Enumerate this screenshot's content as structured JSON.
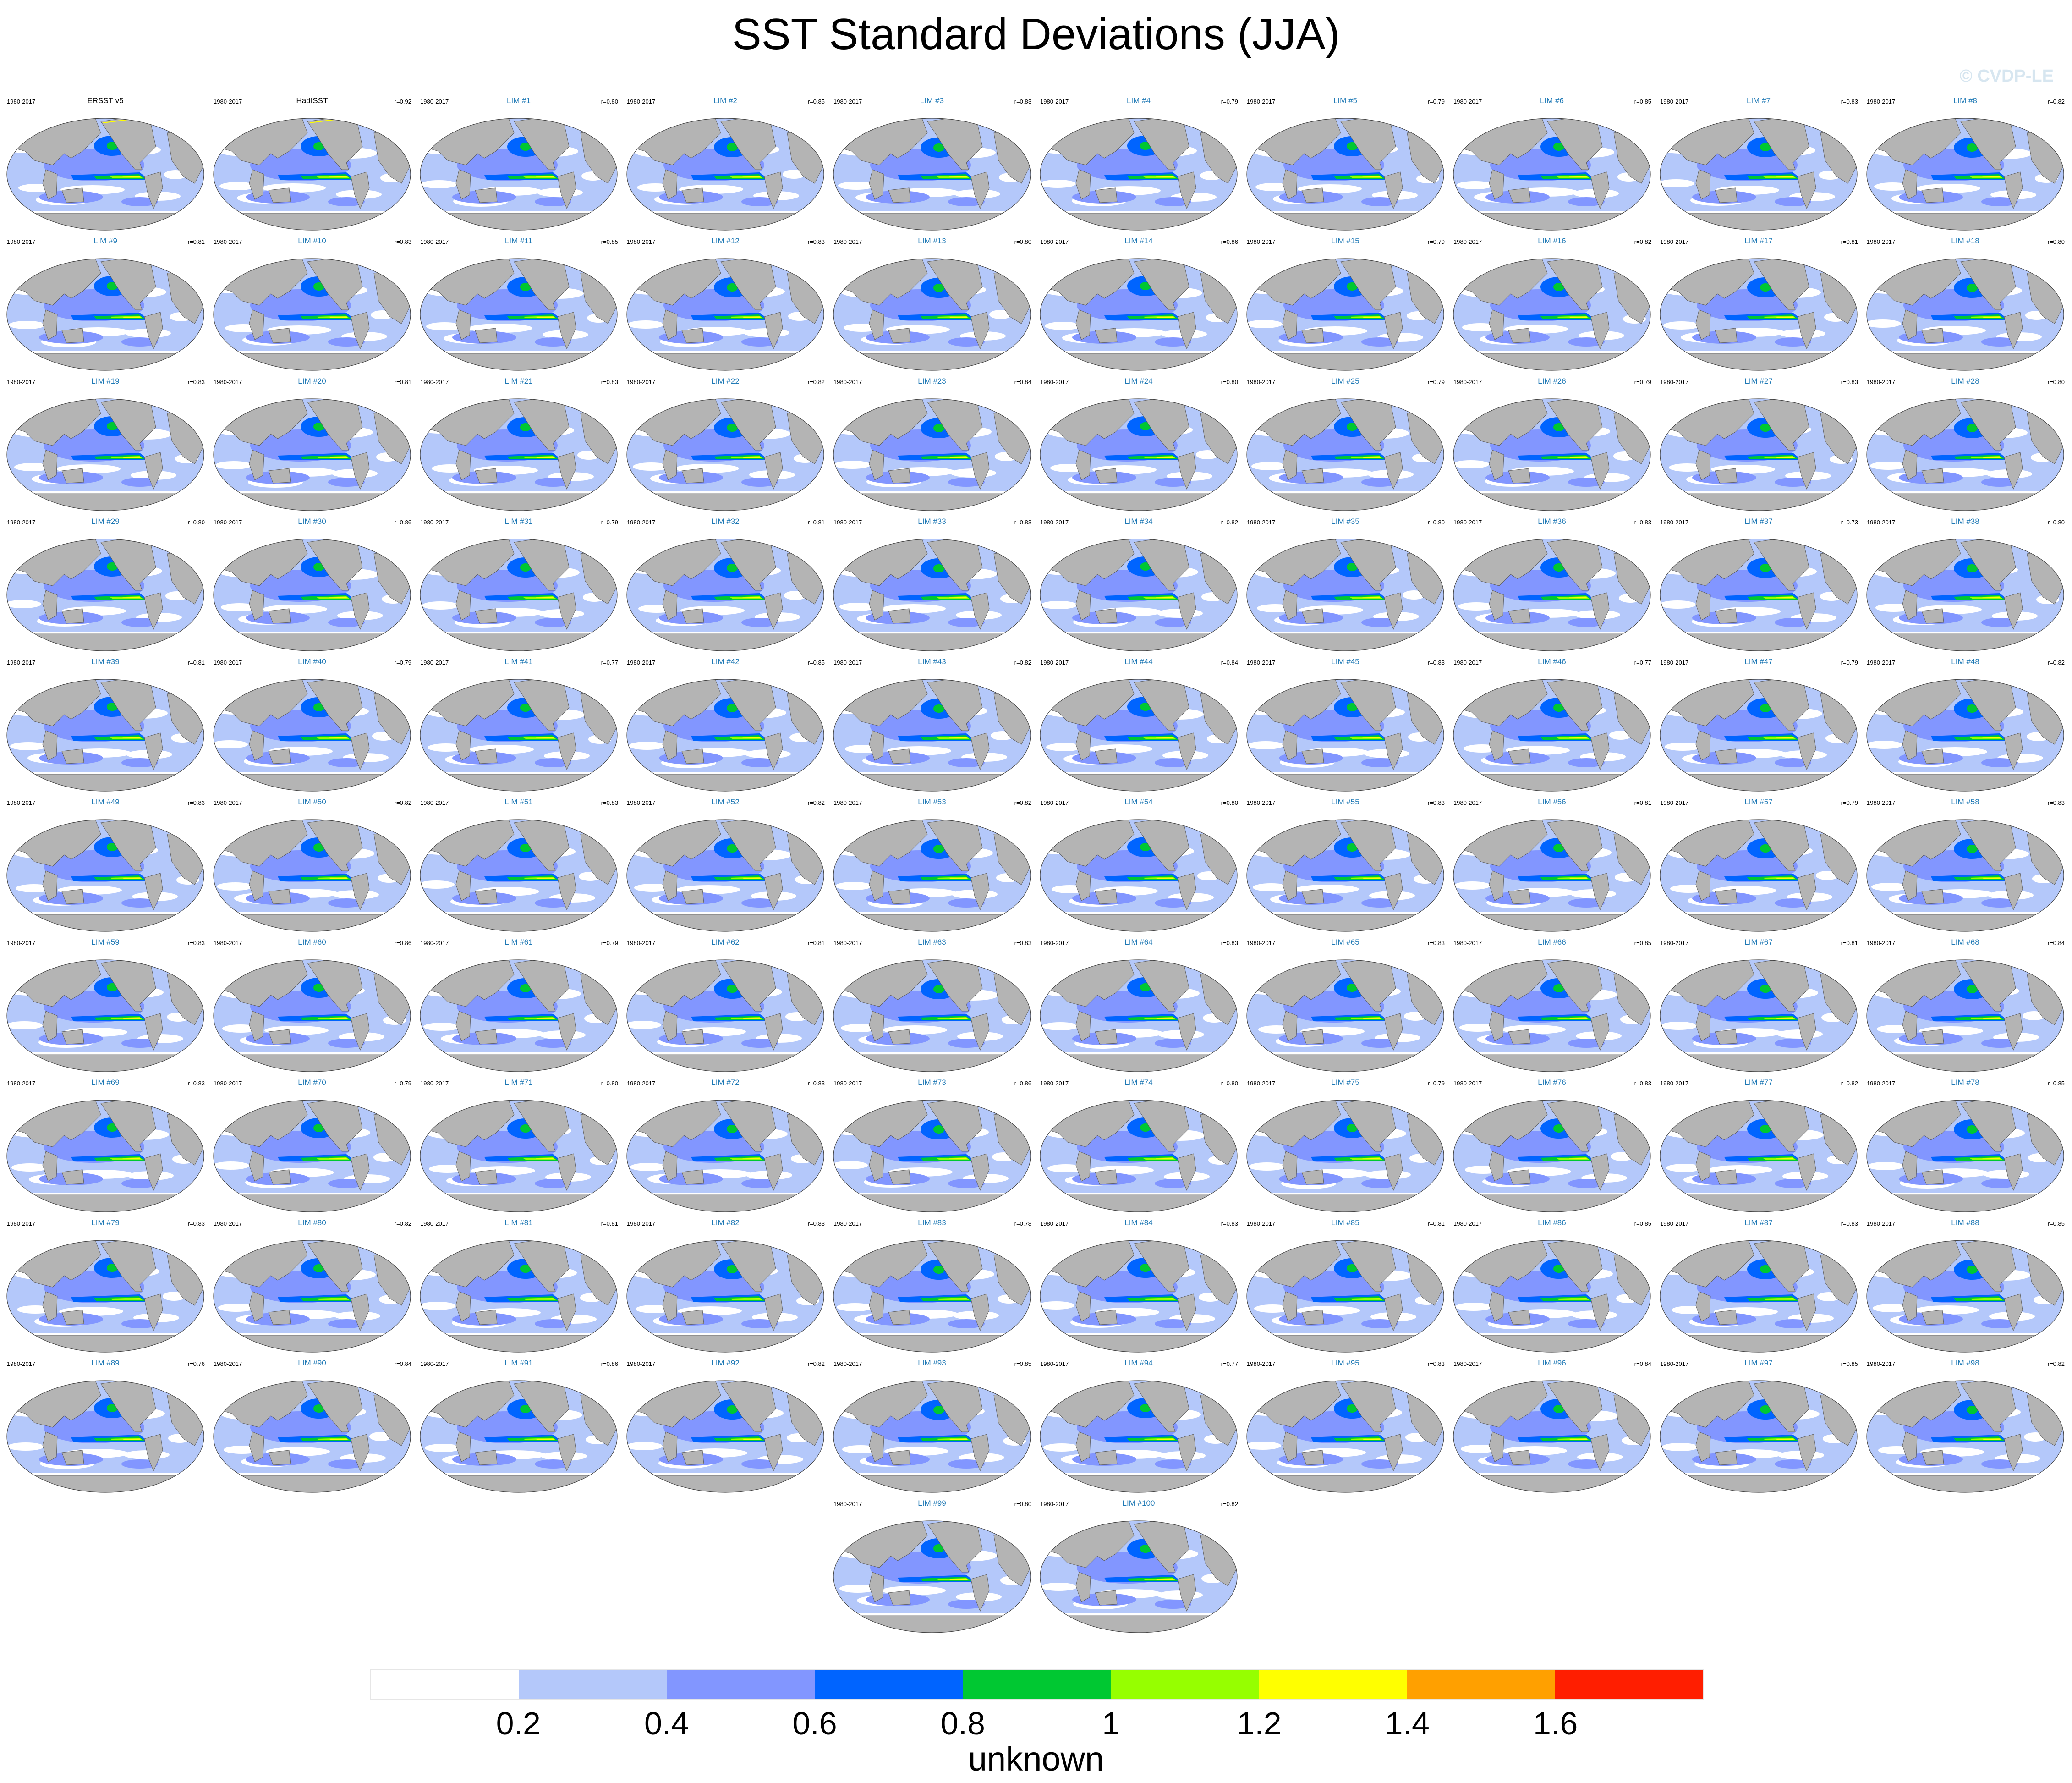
{
  "title": "SST Standard Deviations (JJA)",
  "watermark": "© CVDP-LE",
  "chart_data": {
    "type": "heatmap",
    "title": "SST Standard Deviations (JJA)",
    "period": "1980-2017",
    "panels": [
      {
        "name": "ERSST v5",
        "period": "1980-2017",
        "r": ""
      },
      {
        "name": "HadISST",
        "period": "1980-2017",
        "r": "r=0.92"
      },
      {
        "name": "LIM #1",
        "period": "1980-2017",
        "r": "r=0.80"
      },
      {
        "name": "LIM #2",
        "period": "1980-2017",
        "r": "r=0.85"
      },
      {
        "name": "LIM #3",
        "period": "1980-2017",
        "r": "r=0.83"
      },
      {
        "name": "LIM #4",
        "period": "1980-2017",
        "r": "r=0.79"
      },
      {
        "name": "LIM #5",
        "period": "1980-2017",
        "r": "r=0.79"
      },
      {
        "name": "LIM #6",
        "period": "1980-2017",
        "r": "r=0.85"
      },
      {
        "name": "LIM #7",
        "period": "1980-2017",
        "r": "r=0.83"
      },
      {
        "name": "LIM #8",
        "period": "1980-2017",
        "r": "r=0.82"
      },
      {
        "name": "LIM #9",
        "period": "1980-2017",
        "r": "r=0.81"
      },
      {
        "name": "LIM #10",
        "period": "1980-2017",
        "r": "r=0.83"
      },
      {
        "name": "LIM #11",
        "period": "1980-2017",
        "r": "r=0.85"
      },
      {
        "name": "LIM #12",
        "period": "1980-2017",
        "r": "r=0.83"
      },
      {
        "name": "LIM #13",
        "period": "1980-2017",
        "r": "r=0.80"
      },
      {
        "name": "LIM #14",
        "period": "1980-2017",
        "r": "r=0.86"
      },
      {
        "name": "LIM #15",
        "period": "1980-2017",
        "r": "r=0.79"
      },
      {
        "name": "LIM #16",
        "period": "1980-2017",
        "r": "r=0.82"
      },
      {
        "name": "LIM #17",
        "period": "1980-2017",
        "r": "r=0.81"
      },
      {
        "name": "LIM #18",
        "period": "1980-2017",
        "r": "r=0.80"
      },
      {
        "name": "LIM #19",
        "period": "1980-2017",
        "r": "r=0.83"
      },
      {
        "name": "LIM #20",
        "period": "1980-2017",
        "r": "r=0.81"
      },
      {
        "name": "LIM #21",
        "period": "1980-2017",
        "r": "r=0.83"
      },
      {
        "name": "LIM #22",
        "period": "1980-2017",
        "r": "r=0.82"
      },
      {
        "name": "LIM #23",
        "period": "1980-2017",
        "r": "r=0.84"
      },
      {
        "name": "LIM #24",
        "period": "1980-2017",
        "r": "r=0.80"
      },
      {
        "name": "LIM #25",
        "period": "1980-2017",
        "r": "r=0.79"
      },
      {
        "name": "LIM #26",
        "period": "1980-2017",
        "r": "r=0.79"
      },
      {
        "name": "LIM #27",
        "period": "1980-2017",
        "r": "r=0.83"
      },
      {
        "name": "LIM #28",
        "period": "1980-2017",
        "r": "r=0.80"
      },
      {
        "name": "LIM #29",
        "period": "1980-2017",
        "r": "r=0.80"
      },
      {
        "name": "LIM #30",
        "period": "1980-2017",
        "r": "r=0.86"
      },
      {
        "name": "LIM #31",
        "period": "1980-2017",
        "r": "r=0.79"
      },
      {
        "name": "LIM #32",
        "period": "1980-2017",
        "r": "r=0.81"
      },
      {
        "name": "LIM #33",
        "period": "1980-2017",
        "r": "r=0.83"
      },
      {
        "name": "LIM #34",
        "period": "1980-2017",
        "r": "r=0.82"
      },
      {
        "name": "LIM #35",
        "period": "1980-2017",
        "r": "r=0.80"
      },
      {
        "name": "LIM #36",
        "period": "1980-2017",
        "r": "r=0.83"
      },
      {
        "name": "LIM #37",
        "period": "1980-2017",
        "r": "r=0.73"
      },
      {
        "name": "LIM #38",
        "period": "1980-2017",
        "r": "r=0.80"
      },
      {
        "name": "LIM #39",
        "period": "1980-2017",
        "r": "r=0.81"
      },
      {
        "name": "LIM #40",
        "period": "1980-2017",
        "r": "r=0.79"
      },
      {
        "name": "LIM #41",
        "period": "1980-2017",
        "r": "r=0.77"
      },
      {
        "name": "LIM #42",
        "period": "1980-2017",
        "r": "r=0.85"
      },
      {
        "name": "LIM #43",
        "period": "1980-2017",
        "r": "r=0.82"
      },
      {
        "name": "LIM #44",
        "period": "1980-2017",
        "r": "r=0.84"
      },
      {
        "name": "LIM #45",
        "period": "1980-2017",
        "r": "r=0.83"
      },
      {
        "name": "LIM #46",
        "period": "1980-2017",
        "r": "r=0.77"
      },
      {
        "name": "LIM #47",
        "period": "1980-2017",
        "r": "r=0.79"
      },
      {
        "name": "LIM #48",
        "period": "1980-2017",
        "r": "r=0.82"
      },
      {
        "name": "LIM #49",
        "period": "1980-2017",
        "r": "r=0.83"
      },
      {
        "name": "LIM #50",
        "period": "1980-2017",
        "r": "r=0.82"
      },
      {
        "name": "LIM #51",
        "period": "1980-2017",
        "r": "r=0.83"
      },
      {
        "name": "LIM #52",
        "period": "1980-2017",
        "r": "r=0.82"
      },
      {
        "name": "LIM #53",
        "period": "1980-2017",
        "r": "r=0.82"
      },
      {
        "name": "LIM #54",
        "period": "1980-2017",
        "r": "r=0.80"
      },
      {
        "name": "LIM #55",
        "period": "1980-2017",
        "r": "r=0.83"
      },
      {
        "name": "LIM #56",
        "period": "1980-2017",
        "r": "r=0.81"
      },
      {
        "name": "LIM #57",
        "period": "1980-2017",
        "r": "r=0.79"
      },
      {
        "name": "LIM #58",
        "period": "1980-2017",
        "r": "r=0.83"
      },
      {
        "name": "LIM #59",
        "period": "1980-2017",
        "r": "r=0.83"
      },
      {
        "name": "LIM #60",
        "period": "1980-2017",
        "r": "r=0.86"
      },
      {
        "name": "LIM #61",
        "period": "1980-2017",
        "r": "r=0.79"
      },
      {
        "name": "LIM #62",
        "period": "1980-2017",
        "r": "r=0.81"
      },
      {
        "name": "LIM #63",
        "period": "1980-2017",
        "r": "r=0.83"
      },
      {
        "name": "LIM #64",
        "period": "1980-2017",
        "r": "r=0.83"
      },
      {
        "name": "LIM #65",
        "period": "1980-2017",
        "r": "r=0.83"
      },
      {
        "name": "LIM #66",
        "period": "1980-2017",
        "r": "r=0.85"
      },
      {
        "name": "LIM #67",
        "period": "1980-2017",
        "r": "r=0.81"
      },
      {
        "name": "LIM #68",
        "period": "1980-2017",
        "r": "r=0.84"
      },
      {
        "name": "LIM #69",
        "period": "1980-2017",
        "r": "r=0.83"
      },
      {
        "name": "LIM #70",
        "period": "1980-2017",
        "r": "r=0.79"
      },
      {
        "name": "LIM #71",
        "period": "1980-2017",
        "r": "r=0.80"
      },
      {
        "name": "LIM #72",
        "period": "1980-2017",
        "r": "r=0.83"
      },
      {
        "name": "LIM #73",
        "period": "1980-2017",
        "r": "r=0.86"
      },
      {
        "name": "LIM #74",
        "period": "1980-2017",
        "r": "r=0.80"
      },
      {
        "name": "LIM #75",
        "period": "1980-2017",
        "r": "r=0.79"
      },
      {
        "name": "LIM #76",
        "period": "1980-2017",
        "r": "r=0.83"
      },
      {
        "name": "LIM #77",
        "period": "1980-2017",
        "r": "r=0.82"
      },
      {
        "name": "LIM #78",
        "period": "1980-2017",
        "r": "r=0.85"
      },
      {
        "name": "LIM #79",
        "period": "1980-2017",
        "r": "r=0.83"
      },
      {
        "name": "LIM #80",
        "period": "1980-2017",
        "r": "r=0.82"
      },
      {
        "name": "LIM #81",
        "period": "1980-2017",
        "r": "r=0.81"
      },
      {
        "name": "LIM #82",
        "period": "1980-2017",
        "r": "r=0.83"
      },
      {
        "name": "LIM #83",
        "period": "1980-2017",
        "r": "r=0.78"
      },
      {
        "name": "LIM #84",
        "period": "1980-2017",
        "r": "r=0.83"
      },
      {
        "name": "LIM #85",
        "period": "1980-2017",
        "r": "r=0.81"
      },
      {
        "name": "LIM #86",
        "period": "1980-2017",
        "r": "r=0.85"
      },
      {
        "name": "LIM #87",
        "period": "1980-2017",
        "r": "r=0.83"
      },
      {
        "name": "LIM #88",
        "period": "1980-2017",
        "r": "r=0.85"
      },
      {
        "name": "LIM #89",
        "period": "1980-2017",
        "r": "r=0.76"
      },
      {
        "name": "LIM #90",
        "period": "1980-2017",
        "r": "r=0.84"
      },
      {
        "name": "LIM #91",
        "period": "1980-2017",
        "r": "r=0.86"
      },
      {
        "name": "LIM #92",
        "period": "1980-2017",
        "r": "r=0.82"
      },
      {
        "name": "LIM #93",
        "period": "1980-2017",
        "r": "r=0.85"
      },
      {
        "name": "LIM #94",
        "period": "1980-2017",
        "r": "r=0.77"
      },
      {
        "name": "LIM #95",
        "period": "1980-2017",
        "r": "r=0.83"
      },
      {
        "name": "LIM #96",
        "period": "1980-2017",
        "r": "r=0.84"
      },
      {
        "name": "LIM #97",
        "period": "1980-2017",
        "r": "r=0.85"
      },
      {
        "name": "LIM #98",
        "period": "1980-2017",
        "r": "r=0.82"
      },
      {
        "name": "LIM #99",
        "period": "1980-2017",
        "r": "r=0.80"
      },
      {
        "name": "LIM #100",
        "period": "1980-2017",
        "r": "r=0.82"
      }
    ],
    "colorbar": {
      "label": "unknown",
      "levels": [
        0.2,
        0.4,
        0.6,
        0.8,
        1,
        1.2,
        1.4,
        1.6
      ],
      "tick_labels": [
        "0.2",
        "0.4",
        "0.6",
        "0.8",
        "1",
        "1.2",
        "1.4",
        "1.6"
      ],
      "colors": [
        "#ffffff",
        "#b4c8fa",
        "#8296ff",
        "#0064ff",
        "#00c832",
        "#96ff00",
        "#ffff00",
        "#ffa000",
        "#ff1e00"
      ]
    },
    "land_color": "#b4b4b4",
    "obs_title_color": "#000000",
    "model_title_color": "#1f79b5"
  }
}
